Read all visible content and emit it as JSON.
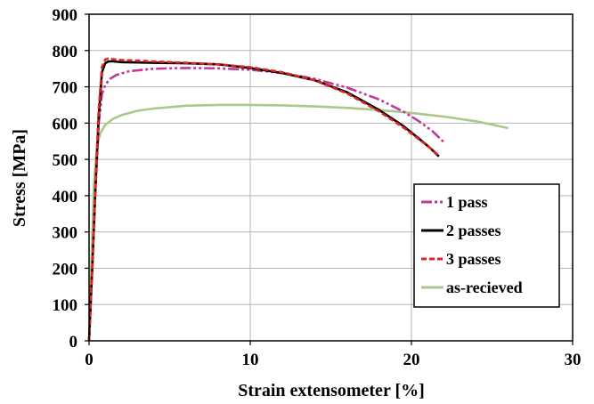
{
  "chart_data": {
    "type": "line",
    "xlabel": "Strain extensometer [%]",
    "ylabel": "Stress [MPa]",
    "xlim": [
      0,
      30
    ],
    "ylim": [
      0,
      900
    ],
    "xticks": [
      "0",
      "10",
      "20",
      "30"
    ],
    "yticks": [
      "0",
      "100",
      "200",
      "300",
      "400",
      "500",
      "600",
      "700",
      "800",
      "900"
    ],
    "grid": "major, both axes",
    "legend_position": "lower-right",
    "series": [
      {
        "name": "1 pass",
        "color": "#c0399b",
        "style": "dash-dot-dot",
        "x": [
          0,
          0.2,
          0.4,
          0.6,
          0.8,
          1.0,
          1.3,
          1.7,
          2.5,
          4,
          6,
          8,
          10,
          12,
          14,
          16,
          18,
          19.5,
          20.5,
          21.3,
          22
        ],
        "y": [
          0,
          200,
          420,
          600,
          680,
          705,
          722,
          733,
          743,
          750,
          752,
          751,
          747,
          738,
          722,
          698,
          665,
          632,
          604,
          578,
          548
        ]
      },
      {
        "name": "2 passes",
        "color": "#000000",
        "style": "solid",
        "x": [
          0,
          0.2,
          0.4,
          0.6,
          0.8,
          1.0,
          1.2,
          1.5,
          2,
          4,
          6,
          8,
          10,
          12,
          14,
          16,
          18,
          19.5,
          20.5,
          21.2,
          21.7
        ],
        "y": [
          0,
          200,
          420,
          620,
          740,
          765,
          770,
          770,
          768,
          766,
          765,
          762,
          752,
          738,
          718,
          685,
          636,
          592,
          556,
          530,
          508
        ]
      },
      {
        "name": "3 passes",
        "color": "#e8231f",
        "style": "dashed",
        "x": [
          0,
          0.2,
          0.4,
          0.6,
          0.8,
          1.0,
          1.2,
          1.5,
          2,
          4,
          6,
          8,
          10,
          12,
          14,
          16,
          18,
          19.5,
          20.5,
          21.2,
          21.7
        ],
        "y": [
          0,
          200,
          430,
          640,
          755,
          775,
          778,
          776,
          774,
          770,
          766,
          762,
          754,
          740,
          718,
          682,
          632,
          588,
          554,
          530,
          510
        ]
      },
      {
        "name": "as-recieved",
        "color": "#a9c98a",
        "style": "solid",
        "x": [
          0,
          0.15,
          0.3,
          0.5,
          0.7,
          1.0,
          1.5,
          2,
          3,
          4,
          6,
          8,
          10,
          12,
          14,
          16,
          18,
          20,
          22,
          24,
          25,
          26
        ],
        "y": [
          0,
          220,
          430,
          540,
          572,
          595,
          612,
          622,
          634,
          640,
          648,
          650,
          650,
          649,
          646,
          642,
          636,
          628,
          618,
          605,
          596,
          586
        ]
      }
    ]
  }
}
